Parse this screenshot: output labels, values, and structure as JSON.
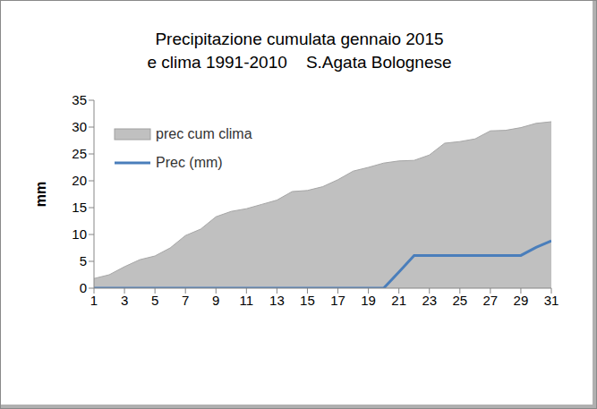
{
  "chart_data": {
    "type": "area",
    "title": "Precipitazione cumulata gennaio 2015\ne clima 1991-2010    S.Agata Bolognese",
    "y_label": "mm",
    "x": [
      1,
      2,
      3,
      4,
      5,
      6,
      7,
      8,
      9,
      10,
      11,
      12,
      13,
      14,
      15,
      16,
      17,
      18,
      19,
      20,
      21,
      22,
      23,
      24,
      25,
      26,
      27,
      28,
      29,
      30,
      31
    ],
    "xlim": [
      1,
      31
    ],
    "xticks": [
      1,
      3,
      5,
      7,
      9,
      11,
      13,
      15,
      17,
      19,
      21,
      23,
      25,
      27,
      29,
      31
    ],
    "ylim": [
      0,
      35
    ],
    "yticks": [
      0,
      5,
      10,
      15,
      20,
      25,
      30,
      35
    ],
    "grid": false,
    "legend": "upper left",
    "series": [
      {
        "name": "prec cum clima",
        "type": "area",
        "color": "#c0c0c0",
        "values": [
          1.8,
          2.5,
          4.0,
          5.3,
          6.0,
          7.5,
          9.8,
          11.0,
          13.3,
          14.3,
          14.8,
          15.6,
          16.4,
          18.0,
          18.2,
          18.9,
          20.2,
          21.8,
          22.5,
          23.3,
          23.7,
          23.8,
          24.8,
          27.0,
          27.3,
          27.8,
          29.3,
          29.4,
          29.9,
          30.7,
          31.0
        ]
      },
      {
        "name": "Prec (mm)",
        "type": "line",
        "color": "#4a7ebb",
        "values": [
          0,
          0,
          0,
          0,
          0,
          0,
          0,
          0,
          0,
          0,
          0,
          0,
          0,
          0,
          0,
          0,
          0,
          0,
          0,
          0,
          3.0,
          6.1,
          6.1,
          6.1,
          6.1,
          6.1,
          6.1,
          6.1,
          6.1,
          7.6,
          8.8
        ]
      }
    ]
  }
}
